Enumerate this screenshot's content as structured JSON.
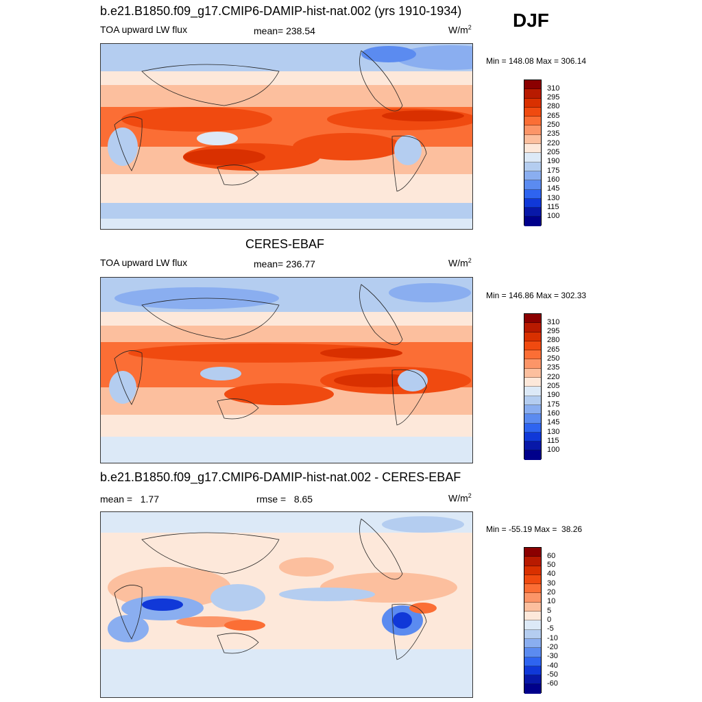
{
  "season": "DJF",
  "panels": [
    {
      "title": "b.e21.B1850.f09_g17.CMIP6-DAMIP-hist-nat.002 (yrs 1910-1934)",
      "left_label": "TOA upward LW flux",
      "center_label": "mean= 238.54",
      "units": "W/m",
      "units_sup": "2",
      "minmax": "Min = 148.08 Max = 306.14",
      "colorbar_labels": [
        "310",
        "295",
        "280",
        "265",
        "250",
        "235",
        "220",
        "205",
        "190",
        "175",
        "160",
        "145",
        "130",
        "115",
        "100"
      ]
    },
    {
      "title": "CERES-EBAF",
      "left_label": "TOA upward LW flux",
      "center_label": "mean= 236.77",
      "units": "W/m",
      "units_sup": "2",
      "minmax": "Min = 146.86 Max = 302.33",
      "colorbar_labels": [
        "310",
        "295",
        "280",
        "265",
        "250",
        "235",
        "220",
        "205",
        "190",
        "175",
        "160",
        "145",
        "130",
        "115",
        "100"
      ]
    },
    {
      "title": "b.e21.B1850.f09_g17.CMIP6-DAMIP-hist-nat.002 - CERES-EBAF",
      "left_label": "mean =   1.77",
      "center_label": "rmse =   8.65",
      "units": "W/m",
      "units_sup": "2",
      "minmax": "Min = -55.19 Max =  38.26",
      "colorbar_labels": [
        "60",
        "50",
        "40",
        "30",
        "20",
        "10",
        "5",
        "0",
        "-5",
        "-10",
        "-20",
        "-30",
        "-40",
        "-50",
        "-60"
      ]
    }
  ],
  "colors": {
    "colorbar_top_to_bottom": [
      "#8b0000",
      "#b81a00",
      "#d93000",
      "#f04a10",
      "#fb6e35",
      "#fc9568",
      "#fcbf9e",
      "#fde8da",
      "#dce9f7",
      "#b4cdf0",
      "#8aaef0",
      "#5b8bf0",
      "#2e64f0",
      "#1038d8",
      "#0818a8",
      "#00008b"
    ]
  }
}
